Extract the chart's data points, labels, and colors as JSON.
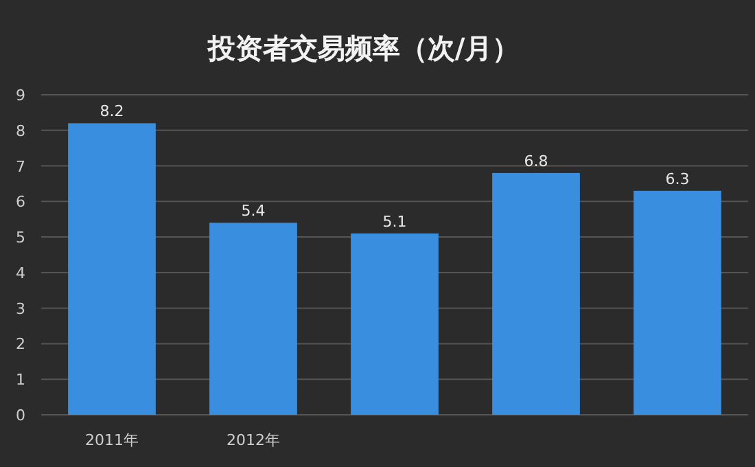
{
  "chart_data": {
    "type": "bar",
    "title": "投资者交易频率（次/月）",
    "categories": [
      "2011年",
      "2012年",
      null,
      null,
      null
    ],
    "values": [
      8.2,
      5.4,
      5.1,
      6.8,
      6.3
    ],
    "color": "#3a8ee0",
    "ylim": [
      0,
      9
    ],
    "yticks": [
      0,
      1,
      2,
      3,
      4,
      5,
      6,
      7,
      8,
      9
    ],
    "grid": "y",
    "data_labels": true
  }
}
